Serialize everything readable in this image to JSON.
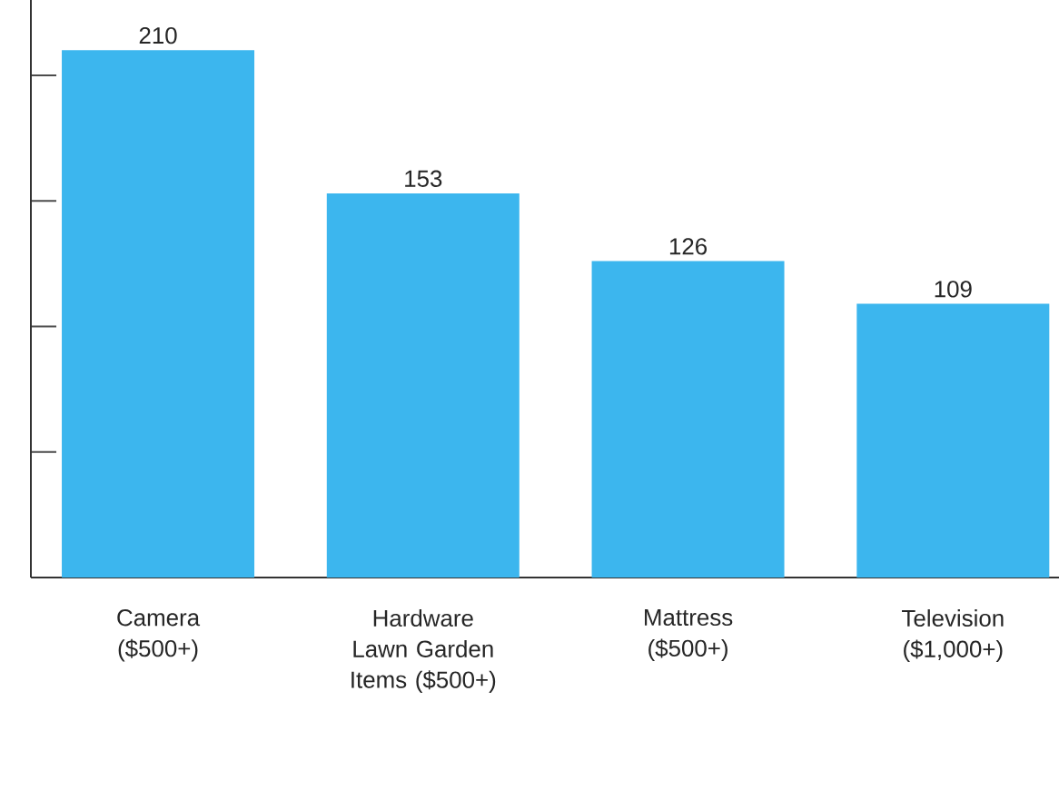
{
  "chart_data": {
    "type": "bar",
    "categories": [
      "Camera ($500+)",
      "Hardware Lawn Garden Items ($500+)",
      "Mattress ($500+)",
      "Television ($1,000+)"
    ],
    "values": [
      210,
      153,
      126,
      109
    ],
    "color": "#3cb6ee",
    "ylim": [
      0,
      230
    ],
    "yticks": [
      {
        "value": 50,
        "label": null
      },
      {
        "value": 100,
        "label": null
      },
      {
        "value": 150,
        "label": null
      },
      {
        "value": 200,
        "label": null
      }
    ],
    "tick_labels": "x",
    "data_labels": true
  }
}
